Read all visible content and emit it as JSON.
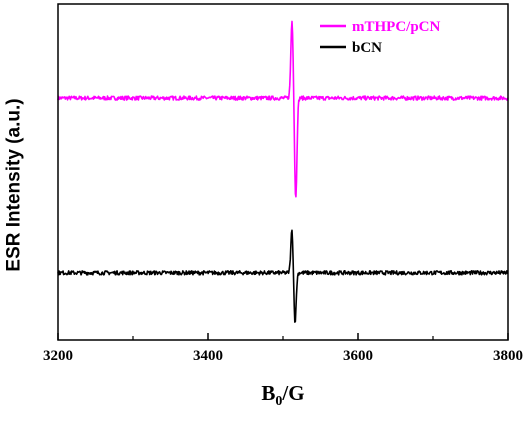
{
  "chart_data": {
    "type": "line",
    "xlabel_main": "B",
    "xlabel_sub": "0",
    "xlabel_tail": "/G",
    "ylabel": "ESR Intensity (a.u.)",
    "xlim": [
      3200,
      3800
    ],
    "x_ticks": [
      "3200",
      "3400",
      "3600",
      "3800"
    ],
    "legend_position": "top-right",
    "grid": false,
    "y_ticks_shown": false,
    "series": [
      {
        "name": "mTHPC/pCN",
        "color": "#ff00ff",
        "baseline": 0.72,
        "peaks": [
          [
            3512,
            0.95
          ],
          [
            3517,
            0.42
          ]
        ]
      },
      {
        "name": "bCN",
        "color": "#000000",
        "baseline": 0.2,
        "peaks": [
          [
            3512,
            0.33
          ],
          [
            3516,
            0.05
          ]
        ]
      }
    ]
  }
}
